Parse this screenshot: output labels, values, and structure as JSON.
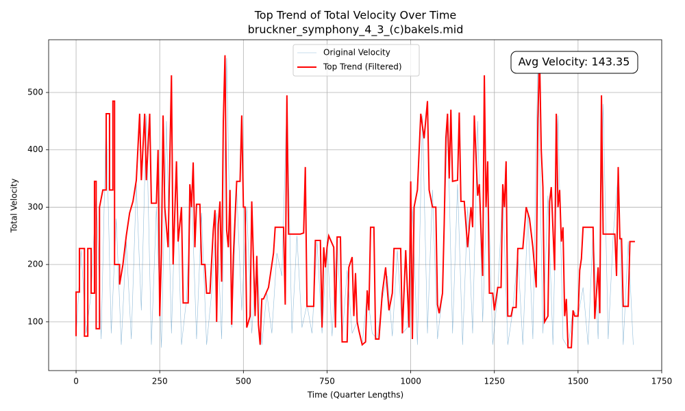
{
  "chart_data": {
    "type": "line",
    "title": "Top Trend of Total Velocity Over Time",
    "subtitle": "bruckner_symphony_4_3_(c)bakels.mid",
    "x_label": "Time (Quarter Lengths)",
    "y_label": "Total Velocity",
    "annotation": "Avg Velocity: 143.35",
    "xlim": [
      -82,
      1750
    ],
    "ylim": [
      15,
      592
    ],
    "xticks": [
      0,
      250,
      500,
      750,
      1000,
      1250,
      1500,
      1750
    ],
    "yticks": [
      100,
      200,
      300,
      400,
      500
    ],
    "grid": true,
    "legend": "upper center",
    "series": [
      {
        "name": "Original Velocity",
        "color": "#1f77b4",
        "x": [
          0,
          15,
          30,
          45,
          60,
          75,
          90,
          105,
          120,
          135,
          150,
          165,
          180,
          195,
          210,
          225,
          240,
          255,
          270,
          285,
          300,
          315,
          330,
          345,
          360,
          375,
          390,
          405,
          420,
          435,
          450,
          465,
          480,
          495,
          510,
          525,
          540,
          555,
          570,
          585,
          600,
          615,
          630,
          645,
          660,
          675,
          690,
          705,
          720,
          735,
          750,
          765,
          780,
          795,
          810,
          825,
          840,
          855,
          870,
          885,
          900,
          915,
          930,
          945,
          960,
          975,
          990,
          1005,
          1020,
          1035,
          1050,
          1065,
          1080,
          1095,
          1110,
          1125,
          1140,
          1155,
          1170,
          1185,
          1200,
          1215,
          1230,
          1245,
          1260,
          1275,
          1290,
          1305,
          1320,
          1335,
          1350,
          1365,
          1380,
          1395,
          1410,
          1425,
          1440,
          1455,
          1470,
          1485,
          1500,
          1515,
          1530,
          1545,
          1560,
          1575,
          1590,
          1605,
          1620,
          1635,
          1650,
          1665
        ],
        "values": [
          75,
          225,
          80,
          150,
          330,
          70,
          460,
          80,
          280,
          60,
          240,
          70,
          340,
          120,
          460,
          60,
          300,
          55,
          450,
          80,
          370,
          60,
          140,
          330,
          70,
          290,
          60,
          150,
          290,
          70,
          560,
          90,
          330,
          120,
          300,
          80,
          210,
          60,
          150,
          80,
          220,
          180,
          490,
          80,
          250,
          90,
          130,
          80,
          240,
          80,
          240,
          75,
          245,
          70,
          190,
          80,
          100,
          60,
          150,
          80,
          70,
          140,
          180,
          75,
          225,
          80,
          90,
          300,
          60,
          460,
          80,
          330,
          70,
          150,
          460,
          80,
          340,
          60,
          300,
          80,
          450,
          100,
          370,
          60,
          150,
          330,
          60,
          120,
          220,
          60,
          290,
          70,
          560,
          80,
          320,
          60,
          460,
          70,
          55,
          120,
          110,
          160,
          60,
          260,
          70,
          480,
          70,
          250,
          360,
          60,
          240,
          60
        ]
      },
      {
        "name": "Top Trend (Filtered)",
        "color": "#ff0000",
        "x": [
          0,
          0,
          10,
          10,
          25,
          25,
          35,
          35,
          45,
          45,
          55,
          55,
          60,
          60,
          70,
          70,
          80,
          90,
          90,
          100,
          100,
          110,
          110,
          115,
          115,
          130,
          130,
          140,
          150,
          160,
          170,
          180,
          190,
          195,
          205,
          210,
          220,
          225,
          240,
          245,
          250,
          255,
          260,
          265,
          275,
          285,
          290,
          300,
          305,
          315,
          320,
          335,
          340,
          345,
          350,
          355,
          360,
          370,
          375,
          385,
          390,
          400,
          410,
          415,
          420,
          425,
          430,
          435,
          440,
          445,
          450,
          455,
          460,
          465,
          470,
          480,
          490,
          495,
          500,
          505,
          510,
          520,
          525,
          535,
          540,
          545,
          550,
          555,
          560,
          575,
          590,
          595,
          620,
          625,
          630,
          635,
          670,
          680,
          685,
          690,
          710,
          715,
          730,
          735,
          740,
          745,
          750,
          755,
          770,
          775,
          780,
          790,
          795,
          810,
          815,
          825,
          830,
          835,
          840,
          845,
          855,
          865,
          870,
          875,
          880,
          890,
          895,
          905,
          915,
          925,
          935,
          945,
          950,
          970,
          975,
          985,
          995,
          1000,
          1005,
          1010,
          1020,
          1030,
          1040,
          1050,
          1055,
          1065,
          1075,
          1080,
          1085,
          1095,
          1100,
          1105,
          1110,
          1115,
          1120,
          1125,
          1140,
          1145,
          1150,
          1160,
          1170,
          1180,
          1185,
          1190,
          1200,
          1205,
          1215,
          1220,
          1225,
          1230,
          1235,
          1245,
          1250,
          1255,
          1260,
          1270,
          1275,
          1280,
          1285,
          1290,
          1300,
          1305,
          1315,
          1320,
          1335,
          1345,
          1355,
          1365,
          1375,
          1380,
          1385,
          1390,
          1395,
          1400,
          1410,
          1415,
          1420,
          1430,
          1435,
          1440,
          1445,
          1450,
          1455,
          1460,
          1465,
          1470,
          1480,
          1485,
          1490,
          1500,
          1505,
          1510,
          1515,
          1545,
          1550,
          1560,
          1565,
          1570,
          1575,
          1610,
          1615,
          1620,
          1625,
          1630,
          1635,
          1650,
          1655,
          1670
        ],
        "values": [
          75,
          152,
          152,
          228,
          228,
          75,
          75,
          228,
          228,
          150,
          150,
          345,
          345,
          88,
          88,
          300,
          330,
          330,
          463,
          463,
          330,
          330,
          485,
          485,
          200,
          200,
          165,
          200,
          250,
          290,
          310,
          347,
          463,
          347,
          463,
          347,
          463,
          307,
          307,
          400,
          110,
          220,
          460,
          300,
          230,
          530,
          200,
          380,
          240,
          300,
          133,
          133,
          340,
          300,
          378,
          230,
          305,
          305,
          200,
          200,
          150,
          150,
          260,
          295,
          100,
          270,
          310,
          170,
          450,
          565,
          260,
          230,
          330,
          95,
          215,
          345,
          345,
          460,
          300,
          300,
          90,
          110,
          310,
          110,
          215,
          95,
          60,
          140,
          140,
          160,
          220,
          265,
          265,
          130,
          495,
          253,
          253,
          255,
          370,
          127,
          127,
          242,
          242,
          90,
          230,
          195,
          230,
          250,
          230,
          90,
          248,
          248,
          65,
          65,
          195,
          213,
          110,
          185,
          100,
          85,
          60,
          65,
          155,
          120,
          265,
          265,
          70,
          70,
          150,
          195,
          120,
          150,
          228,
          228,
          80,
          225,
          90,
          345,
          70,
          300,
          330,
          463,
          420,
          485,
          330,
          300,
          300,
          130,
          115,
          150,
          270,
          420,
          463,
          350,
          470,
          345,
          347,
          465,
          310,
          310,
          230,
          300,
          265,
          460,
          320,
          340,
          180,
          530,
          300,
          380,
          150,
          150,
          120,
          140,
          160,
          160,
          340,
          300,
          380,
          110,
          110,
          125,
          125,
          228,
          228,
          300,
          280,
          230,
          160,
          455,
          565,
          400,
          335,
          100,
          110,
          310,
          335,
          190,
          463,
          300,
          330,
          240,
          265,
          110,
          140,
          55,
          55,
          120,
          110,
          110,
          190,
          210,
          265,
          265,
          105,
          195,
          115,
          495,
          253,
          253,
          180,
          370,
          245,
          245,
          127,
          127,
          240,
          240
        ]
      }
    ]
  }
}
